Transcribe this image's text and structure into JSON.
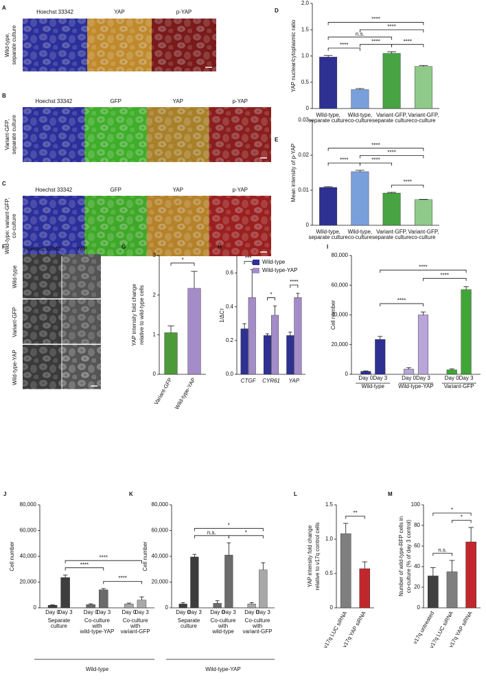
{
  "image_panels": [
    {
      "panel": "A",
      "row_label": [
        "Wild-type,",
        "separate culture"
      ],
      "channels": [
        "Hoechst 33342",
        "YAP",
        "p-YAP"
      ],
      "colors": [
        "#2b2f9a",
        "#c08a2c",
        "#7a1a1a"
      ]
    },
    {
      "panel": "B",
      "row_label": [
        "Variant-GFP,",
        "separate culture"
      ],
      "channels": [
        "Hoechst 33342",
        "GFP",
        "YAP",
        "p-YAP"
      ],
      "colors": [
        "#2b2f9a",
        "#3fae2a",
        "#a8802a",
        "#8a1e1e"
      ]
    },
    {
      "panel": "C",
      "row_label": [
        "Wild-type: variant-GFP,",
        "co-culture"
      ],
      "channels": [
        "Hoechst 33342",
        "GFP",
        "YAP",
        "p-YAP"
      ],
      "colors": [
        "#2b2f9a",
        "#3fa828",
        "#b5822a",
        "#9a2020"
      ]
    },
    {
      "panel": "F",
      "channels": [
        "Hoechst 33342",
        "YAP"
      ],
      "rows": [
        "Wild-type",
        "Variant-GFP",
        "Wild-type-YAP"
      ],
      "colors": [
        "#3a3a3a",
        "#555555"
      ]
    }
  ],
  "chart_data": [
    {
      "type": "bar",
      "panel": "D",
      "ylabel": "YAP nuclear/cytoplasmic ratio",
      "categories": [
        [
          "Wild-type,",
          "separate culture"
        ],
        [
          "Wild-type,",
          "co-culture"
        ],
        [
          "Variant-GFP,",
          "separate culture"
        ],
        [
          "Variant-GFP,",
          "co-culture"
        ]
      ],
      "values": [
        0.98,
        0.36,
        1.05,
        0.8
      ],
      "errors": [
        0.03,
        0.02,
        0.03,
        0.02
      ],
      "colors": [
        "#2e3192",
        "#7aa0dc",
        "#48a342",
        "#8fca8a"
      ],
      "ylim": [
        0,
        2
      ],
      "yticks": [
        0,
        0.5,
        {
          "value": 1,
          "label": "1.0"
        },
        1.5,
        {
          "value": 2,
          "label": "2.0"
        }
      ],
      "annotations": [
        {
          "label": "****",
          "from": 0,
          "to": 1
        },
        {
          "label": "****",
          "from": 1,
          "to": 2
        },
        {
          "label": "****",
          "from": 2,
          "to": 3
        },
        {
          "label": "n.s.",
          "from": 0,
          "to": 2
        },
        {
          "label": "****",
          "from": 1,
          "to": 3
        },
        {
          "label": "****",
          "from": 0,
          "to": 3
        }
      ]
    },
    {
      "type": "bar",
      "panel": "E",
      "ylabel": "Mean intensity of p-YAP",
      "categories": [
        [
          "Wild-type,",
          "separate culture"
        ],
        [
          "Wild-type,",
          "co-culture"
        ],
        [
          "Variant-GFP,",
          "separate culture"
        ],
        [
          "Variant-GFP,",
          "co-culture"
        ]
      ],
      "values": [
        0.0108,
        0.0153,
        0.0092,
        0.0073
      ],
      "errors": [
        0.0002,
        0.0004,
        0.0002,
        0.0001
      ],
      "colors": [
        "#2e3192",
        "#7aa0dc",
        "#48a342",
        "#8fca8a"
      ],
      "ylim": [
        0,
        0.03
      ],
      "yticks": [
        0,
        0.01,
        0.02,
        0.03
      ],
      "annotations": [
        {
          "label": "****",
          "from": 0,
          "to": 1
        },
        {
          "label": "****",
          "from": 1,
          "to": 2
        },
        {
          "label": "****",
          "from": 2,
          "to": 3
        },
        {
          "label": "****",
          "from": 1,
          "to": 3
        },
        {
          "label": "****",
          "from": 0,
          "to": 3
        }
      ]
    },
    {
      "type": "bar",
      "panel": "G",
      "ylabel": [
        "YAP intensity fold change",
        "relative to wild-type cells"
      ],
      "categories": [
        "Variant-GFP",
        "Wild-type-YAP"
      ],
      "values": [
        1.05,
        2.17
      ],
      "errors": [
        0.17,
        0.43
      ],
      "colors": [
        "#4c9a3a",
        "#a48cc8"
      ],
      "ylim": [
        0,
        3
      ],
      "yticks": [
        0,
        1,
        2,
        3
      ],
      "annotations": [
        {
          "label": "*",
          "from": 0,
          "to": 1
        }
      ]
    },
    {
      "type": "bar",
      "panel": "H",
      "ylabel": "1/ΔCᴛ",
      "categories": [
        "CTGF",
        "CYR61",
        "YAP"
      ],
      "series": [
        {
          "name": "Wild-type",
          "color": "#2e3192",
          "values": [
            0.27,
            0.23,
            0.23
          ],
          "errors": [
            0.03,
            0.01,
            0.02
          ]
        },
        {
          "name": "Wild-type-YAP",
          "color": "#a48cc8",
          "values": [
            0.455,
            0.35,
            0.455
          ],
          "errors": [
            0.165,
            0.055,
            0.025
          ]
        }
      ],
      "ylim": [
        0,
        0.7
      ],
      "yticks": [
        {
          "value": 0,
          "label": "0.0"
        },
        0.2,
        0.4,
        0.6
      ],
      "annotations": [
        {
          "label": "***",
          "from": 0,
          "to": 1
        },
        {
          "label": "*",
          "from": 2,
          "to": 3
        },
        {
          "label": "****",
          "from": 4,
          "to": 5
        }
      ]
    },
    {
      "type": "bar",
      "panel": "I",
      "ylabel": "Cell number",
      "categories": [
        "Day 0",
        "Day 3",
        "Day 0",
        "Day 3",
        "Day 0",
        "Day 3"
      ],
      "group_labels": [
        [
          "Wild-type"
        ],
        [
          "Wild-type-YAP"
        ],
        [
          "Variant-GFP"
        ]
      ],
      "values": [
        2000,
        23500,
        3500,
        40000,
        3000,
        57000
      ],
      "errors": [
        300,
        2000,
        1000,
        2000,
        700,
        2000
      ],
      "colors": [
        "#2e3192",
        "#2e3192",
        "#b8a6d8",
        "#b8a6d8",
        "#3fa535",
        "#3fa535"
      ],
      "ylim": [
        0,
        80000
      ],
      "yticks": [
        0,
        {
          "value": 20000,
          "label": "20,000"
        },
        {
          "value": 40000,
          "label": "40,000"
        },
        {
          "value": 60000,
          "label": "60,000"
        },
        {
          "value": 80000,
          "label": "80,000"
        }
      ],
      "annotations": [
        {
          "label": "****",
          "from": 1,
          "to": 3
        },
        {
          "label": "****",
          "from": 3,
          "to": 5
        },
        {
          "label": "****",
          "from": 1,
          "to": 5
        }
      ]
    },
    {
      "type": "bar",
      "panel": "J",
      "ylabel": "Cell number",
      "xlabel": "Wild-type",
      "categories": [
        "Day 0",
        "Day 3",
        "Day 0",
        "Day 3",
        "Day 0",
        "Day 3"
      ],
      "group_labels": [
        [
          "Separate",
          "culture"
        ],
        [
          "Co-culture",
          "with",
          "wild-type-YAP"
        ],
        [
          "Co-culture",
          "with",
          "variant-GFP"
        ]
      ],
      "values": [
        2000,
        23500,
        2500,
        14000,
        3000,
        6000
      ],
      "errors": [
        300,
        2000,
        700,
        1000,
        700,
        2500
      ],
      "colors": [
        "#3d3d3d",
        "#3d3d3d",
        "#6b6b6b",
        "#6b6b6b",
        "#a8a8a8",
        "#a8a8a8"
      ],
      "ylim": [
        0,
        80000
      ],
      "yticks": [
        0,
        {
          "value": 20000,
          "label": "20,000"
        },
        {
          "value": 40000,
          "label": "40,000"
        },
        {
          "value": 60000,
          "label": "60,000"
        },
        {
          "value": 80000,
          "label": "80,000"
        }
      ],
      "annotations": [
        {
          "label": "****",
          "from": 1,
          "to": 3
        },
        {
          "label": "****",
          "from": 3,
          "to": 5
        },
        {
          "label": "****",
          "from": 1,
          "to": 5
        }
      ]
    },
    {
      "type": "bar",
      "panel": "K",
      "ylabel": "Cell number",
      "xlabel": "Wild-type-YAP",
      "categories": [
        "Day 0",
        "Day 3",
        "Day 0",
        "Day 3",
        "Day 0",
        "Day 3"
      ],
      "group_labels": [
        [
          "Separate",
          "culture"
        ],
        [
          "Co-culture",
          "with",
          "wild-type"
        ],
        [
          "Co-culture",
          "with",
          "variant-GFP"
        ]
      ],
      "values": [
        3000,
        39500,
        3500,
        41000,
        3000,
        29500
      ],
      "errors": [
        1000,
        2000,
        2000,
        9500,
        1000,
        5500
      ],
      "colors": [
        "#3d3d3d",
        "#3d3d3d",
        "#6b6b6b",
        "#6b6b6b",
        "#a8a8a8",
        "#a8a8a8"
      ],
      "ylim": [
        0,
        80000
      ],
      "yticks": [
        0,
        {
          "value": 20000,
          "label": "20,000"
        },
        {
          "value": 40000,
          "label": "40,000"
        },
        {
          "value": 60000,
          "label": "60,000"
        },
        {
          "value": 80000,
          "label": "80,000"
        }
      ],
      "annotations": [
        {
          "label": "n.s.",
          "from": 1,
          "to": 3
        },
        {
          "label": "*",
          "from": 3,
          "to": 5
        },
        {
          "label": "*",
          "from": 1,
          "to": 5
        }
      ]
    },
    {
      "type": "bar",
      "panel": "L",
      "ylabel": [
        "YAP intensity fold change",
        "relative to v17q control cells"
      ],
      "categories": [
        "v17q LUC siRNA",
        "v17q YAP siRNA"
      ],
      "values": [
        1.08,
        0.57
      ],
      "errors": [
        0.15,
        0.1
      ],
      "colors": [
        "#7f7f7f",
        "#c0282d"
      ],
      "ylim": [
        0,
        1.5
      ],
      "yticks": [
        0,
        0.5,
        {
          "value": 1,
          "label": "1.0"
        },
        1.5
      ],
      "annotations": [
        {
          "label": "**",
          "from": 0,
          "to": 1
        }
      ]
    },
    {
      "type": "bar",
      "panel": "M",
      "ylabel": [
        "Number of wild-type-RFP cells in",
        "co-culture (% of day 3 control)"
      ],
      "categories": [
        "v17q untreated",
        "v17q LUC siRNA",
        "v17q YAP siRNA"
      ],
      "values": [
        31,
        35,
        64
      ],
      "errors": [
        8,
        11,
        14
      ],
      "colors": [
        "#404040",
        "#7f7f7f",
        "#c0282d"
      ],
      "ylim": [
        0,
        100
      ],
      "yticks": [
        0,
        20,
        40,
        60,
        80,
        100
      ],
      "annotations": [
        {
          "label": "n.s.",
          "from": 0,
          "to": 1
        },
        {
          "label": "*",
          "from": 1,
          "to": 2
        },
        {
          "label": "*",
          "from": 0,
          "to": 2
        }
      ]
    }
  ]
}
